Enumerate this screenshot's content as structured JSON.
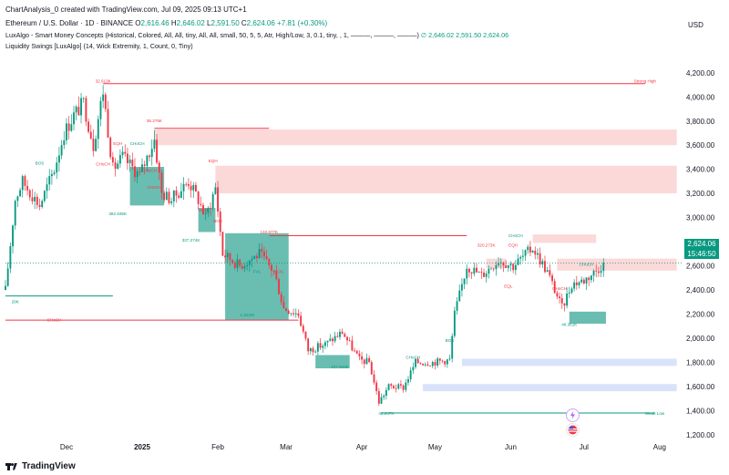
{
  "snapshot_line": "ChartAnalysis_0 created with TradingView.com, Jul 09, 2025 09:13 UTC+1",
  "header": {
    "symbol": "Ethereum / U.S. Dollar · 1D · BINANCE",
    "ohlc": {
      "o_label": "O",
      "o": "2,616.46",
      "h_label": "H",
      "h": "2,646.02",
      "l_label": "L",
      "l": "2,591.50",
      "c_label": "C",
      "c": "2,624.06",
      "chg": "+7.81 (+0.30%)"
    },
    "indicator1": "LuxAlgo - Smart Money Concepts (Historical, Colored, All, All, tiny, All, All, small, 50, 5, 5, Atr, High/Low, 3, 0.1, tiny, , 1, ———, ———, ———)",
    "indicator1_vals": "∅  2,646.02  2,591.50  2,624.06",
    "indicator2": "Liquidity Swings [LuxAlgo] (14, Wick Extremity, 1, Count, 0, Tiny)"
  },
  "currency": "USD",
  "price_badge": {
    "price": "2,624.06",
    "countdown": "15:46:50",
    "color": "#089981"
  },
  "footer_brand": "TradingView",
  "colors": {
    "up": "#089981",
    "down": "#f23645",
    "ob_green": "#4fb3a3",
    "supply": "#fbd5d5",
    "demand": "#d4e0fb"
  },
  "chart_data": {
    "type": "candlestick",
    "title": "",
    "y_axis": {
      "min": 1100,
      "max": 4350,
      "ticks": [
        1200,
        1400,
        1600,
        1800,
        2000,
        2200,
        2400,
        2600,
        2800,
        3000,
        3200,
        3400,
        3600,
        3800,
        4000,
        4200
      ]
    },
    "y_tick_labels": [
      "1,200.00",
      "1,400.00",
      "1,600.00",
      "1,800.00",
      "2,000.00",
      "2,200.00",
      "2,400.00",
      "2,600.00",
      "2,800.00",
      "3,000.00",
      "3,200.00",
      "3,400.00",
      "3,600.00",
      "3,800.00",
      "4,000.00",
      "4,200.00"
    ],
    "x_axis": {
      "start": "2024-11-06",
      "end": "2025-08-10",
      "labels": [
        {
          "t": "Dec",
          "d": "2024-12-01"
        },
        {
          "t": "2025",
          "d": "2025-01-01"
        },
        {
          "t": "Feb",
          "d": "2025-02-01"
        },
        {
          "t": "Mar",
          "d": "2025-03-01"
        },
        {
          "t": "Apr",
          "d": "2025-04-01"
        },
        {
          "t": "May",
          "d": "2025-05-01"
        },
        {
          "t": "Jun",
          "d": "2025-06-01"
        },
        {
          "t": "Jul",
          "d": "2025-07-01"
        },
        {
          "t": "Aug",
          "d": "2025-08-01"
        }
      ]
    },
    "anchors": [
      [
        "2024-11-06",
        2400
      ],
      [
        "2024-11-10",
        3150
      ],
      [
        "2024-11-13",
        3300
      ],
      [
        "2024-11-20",
        3100
      ],
      [
        "2024-11-26",
        3400
      ],
      [
        "2024-11-30",
        3700
      ],
      [
        "2024-12-04",
        3850
      ],
      [
        "2024-12-08",
        3950
      ],
      [
        "2024-12-12",
        3600
      ],
      [
        "2024-12-16",
        4050
      ],
      [
        "2024-12-20",
        3400
      ],
      [
        "2024-12-24",
        3500
      ],
      [
        "2024-12-31",
        3350
      ],
      [
        "2025-01-06",
        3650
      ],
      [
        "2025-01-09",
        3200
      ],
      [
        "2025-01-13",
        3150
      ],
      [
        "2025-01-20",
        3300
      ],
      [
        "2025-01-24",
        3150
      ],
      [
        "2025-01-27",
        3000
      ],
      [
        "2025-01-31",
        3250
      ],
      [
        "2025-02-03",
        2700
      ],
      [
        "2025-02-10",
        2600
      ],
      [
        "2025-02-18",
        2700
      ],
      [
        "2025-02-24",
        2550
      ],
      [
        "2025-02-28",
        2250
      ],
      [
        "2025-03-06",
        2200
      ],
      [
        "2025-03-10",
        1900
      ],
      [
        "2025-03-17",
        1950
      ],
      [
        "2025-03-24",
        2050
      ],
      [
        "2025-03-31",
        1820
      ],
      [
        "2025-04-04",
        1800
      ],
      [
        "2025-04-08",
        1470
      ],
      [
        "2025-04-12",
        1600
      ],
      [
        "2025-04-18",
        1590
      ],
      [
        "2025-04-23",
        1800
      ],
      [
        "2025-04-30",
        1800
      ],
      [
        "2025-05-07",
        1820
      ],
      [
        "2025-05-09",
        2200
      ],
      [
        "2025-05-14",
        2600
      ],
      [
        "2025-05-20",
        2520
      ],
      [
        "2025-05-27",
        2650
      ],
      [
        "2025-06-02",
        2600
      ],
      [
        "2025-06-10",
        2750
      ],
      [
        "2025-06-16",
        2550
      ],
      [
        "2025-06-22",
        2250
      ],
      [
        "2025-06-26",
        2450
      ],
      [
        "2025-07-01",
        2480
      ],
      [
        "2025-07-06",
        2560
      ],
      [
        "2025-07-09",
        2624
      ]
    ],
    "labels": [
      {
        "text": "32.613K",
        "d": "2024-12-16",
        "y": 4120,
        "color": "#f23645"
      },
      {
        "text": "Strong High",
        "d": "2025-07-26",
        "y": 4120,
        "color": "#f23645"
      },
      {
        "text": "36.276K",
        "d": "2025-01-06",
        "y": 3790,
        "color": "#f23645"
      },
      {
        "text": "EQH",
        "d": "2024-12-22",
        "y": 3600,
        "color": "#f23645"
      },
      {
        "text": "CHoCH",
        "d": "2024-12-30",
        "y": 3600,
        "color": "#089981"
      },
      {
        "text": "BOS",
        "d": "2024-11-20",
        "y": 3440,
        "color": "#089981"
      },
      {
        "text": "CHoCH",
        "d": "2024-12-16",
        "y": 3430,
        "color": "#f23645"
      },
      {
        "text": "CHoCH",
        "d": "2025-01-04",
        "y": 3380,
        "color": "#f23645"
      },
      {
        "text": "EQH",
        "d": "2025-01-30",
        "y": 3460,
        "color": "#f23645"
      },
      {
        "text": "CHoCH",
        "d": "2025-01-06",
        "y": 3240,
        "color": "#f23645"
      },
      {
        "text": "BOS",
        "d": "2025-01-26",
        "y": 3050,
        "color": "#f23645"
      },
      {
        "text": "382.635K",
        "d": "2024-12-22",
        "y": 3020,
        "color": "#089981"
      },
      {
        "text": "BOS",
        "d": "2025-02-01",
        "y": 2960,
        "color": "#f23645"
      },
      {
        "text": "337.274K",
        "d": "2025-01-21",
        "y": 2800,
        "color": "#089981"
      },
      {
        "text": "132.877K",
        "d": "2025-02-22",
        "y": 2870,
        "color": "#f23645"
      },
      {
        "text": "FVL",
        "d": "2025-02-17",
        "y": 2540,
        "color": "#089981"
      },
      {
        "text": "BOS",
        "d": "2025-02-26",
        "y": 2540,
        "color": "#f23645"
      },
      {
        "text": "CHoCH",
        "d": "2024-11-26",
        "y": 2140,
        "color": "#f23645"
      },
      {
        "text": "1.521M",
        "d": "2025-02-13",
        "y": 2180,
        "color": "#089981"
      },
      {
        "text": "427.933K",
        "d": "2025-03-23",
        "y": 1750,
        "color": "#089981"
      },
      {
        "text": "CHoCH",
        "d": "2025-04-22",
        "y": 1830,
        "color": "#089981"
      },
      {
        "text": "BOS",
        "d": "2025-05-07",
        "y": 1970,
        "color": "#089981"
      },
      {
        "text": "46.247K",
        "d": "2025-04-11",
        "y": 1365,
        "color": "#089981"
      },
      {
        "text": "Weak Low",
        "d": "2025-07-30",
        "y": 1365,
        "color": "#089981"
      },
      {
        "text": "320.273K",
        "d": "2025-05-22",
        "y": 2760,
        "color": "#f23645"
      },
      {
        "text": "EQH",
        "d": "2025-06-02",
        "y": 2760,
        "color": "#f23645"
      },
      {
        "text": "CHoCH",
        "d": "2025-06-03",
        "y": 2840,
        "color": "#089981"
      },
      {
        "text": "CHoCH",
        "d": "2025-06-21",
        "y": 2400,
        "color": "#f23645"
      },
      {
        "text": "CHoCH",
        "d": "2025-07-02",
        "y": 2600,
        "color": "#089981"
      },
      {
        "text": "49.361K",
        "d": "2025-06-25",
        "y": 2100,
        "color": "#089981"
      },
      {
        "text": "29K",
        "d": "2024-11-10",
        "y": 2290,
        "color": "#089981"
      },
      {
        "text": "EQL",
        "d": "2025-05-31",
        "y": 2420,
        "color": "#f23645"
      }
    ],
    "zones": [
      {
        "type": "supply",
        "d1": "2025-01-06",
        "d2": "2025-08-08",
        "y1": 3600,
        "y2": 3730
      },
      {
        "type": "supply",
        "d1": "2025-01-31",
        "d2": "2025-08-08",
        "y1": 3200,
        "y2": 3430
      },
      {
        "type": "supply",
        "d1": "2025-06-10",
        "d2": "2025-07-06",
        "y1": 2790,
        "y2": 2860
      },
      {
        "type": "supply",
        "d1": "2025-06-20",
        "d2": "2025-08-08",
        "y1": 2560,
        "y2": 2660
      },
      {
        "type": "supply",
        "d1": "2025-05-22",
        "d2": "2025-05-30",
        "y1": 2580,
        "y2": 2660
      },
      {
        "type": "demand",
        "d1": "2025-05-12",
        "d2": "2025-08-08",
        "y1": 1770,
        "y2": 1830
      },
      {
        "type": "demand",
        "d1": "2025-04-26",
        "d2": "2025-08-08",
        "y1": 1560,
        "y2": 1620
      },
      {
        "type": "ob",
        "d1": "2024-12-27",
        "d2": "2025-01-10",
        "y1": 3100,
        "y2": 3420
      },
      {
        "type": "ob",
        "d1": "2025-01-24",
        "d2": "2025-01-31",
        "y1": 2880,
        "y2": 3080
      },
      {
        "type": "ob",
        "d1": "2025-02-04",
        "d2": "2025-03-02",
        "y1": 2150,
        "y2": 2870
      },
      {
        "type": "ob",
        "d1": "2025-03-13",
        "d2": "2025-03-27",
        "y1": 1750,
        "y2": 1860
      },
      {
        "type": "ob",
        "d1": "2025-06-25",
        "d2": "2025-07-10",
        "y1": 2120,
        "y2": 2220
      }
    ],
    "lines": [
      {
        "d1": "2024-12-16",
        "d2": "2025-07-26",
        "y": 4110,
        "color": "#f23645"
      },
      {
        "d1": "2025-01-06",
        "d2": "2025-02-22",
        "y": 3740,
        "color": "#f23645"
      },
      {
        "d1": "2025-02-22",
        "d2": "2025-05-14",
        "y": 2850,
        "color": "#f23645"
      },
      {
        "d1": "2024-11-06",
        "d2": "2025-03-06",
        "y": 2150,
        "color": "#f23645"
      },
      {
        "d1": "2024-11-06",
        "d2": "2024-12-20",
        "y": 2350,
        "color": "#089981"
      },
      {
        "d1": "2025-04-09",
        "d2": "2025-07-30",
        "y": 1380,
        "color": "#089981"
      }
    ],
    "last_price": 2624.06
  }
}
